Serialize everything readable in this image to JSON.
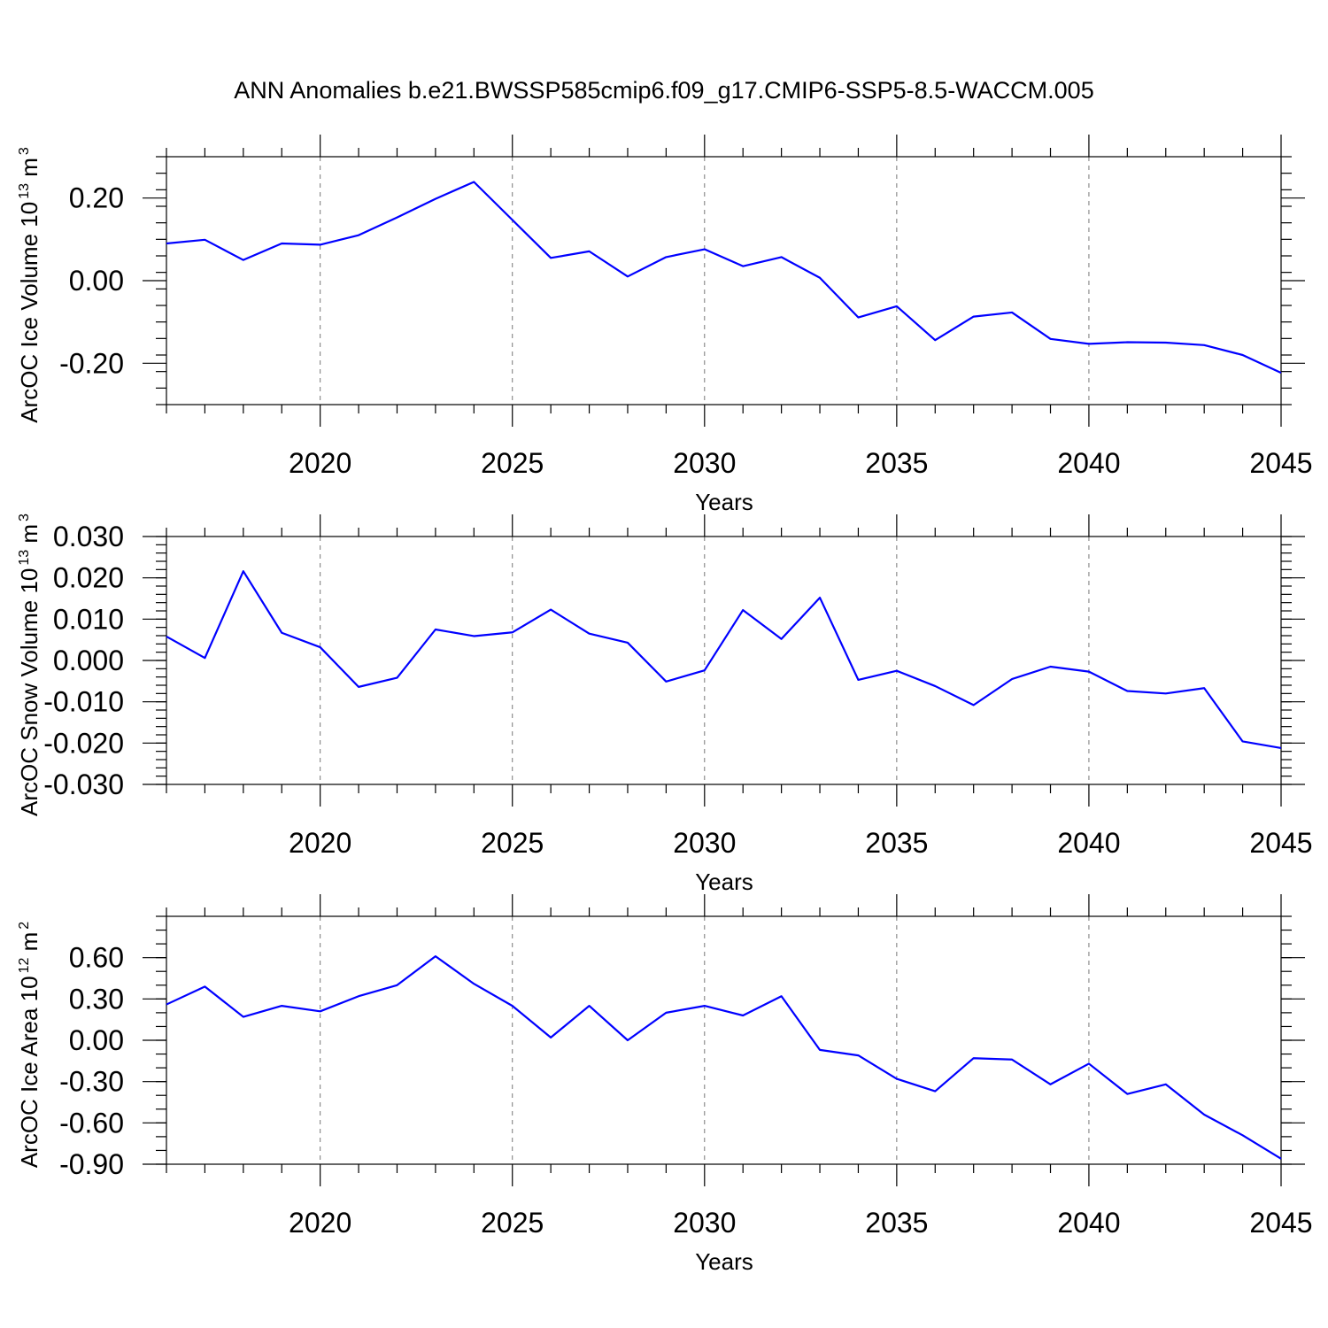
{
  "title": "ANN Anomalies b.e21.BWSSP585cmip6.f09_g17.CMIP6-SSP5-8.5-WACCM.005",
  "line_color": "#0000ff",
  "chart_data": [
    {
      "type": "line",
      "ylabel": "ArcOC Ice Volume 10",
      "ylabel_exp": "13",
      "ylabel_unit": " m",
      "ylabel_unit_exp": "3",
      "xlabel": "Years",
      "xlim": [
        2016,
        2045
      ],
      "ylim": [
        -0.3,
        0.3
      ],
      "x_ticks": [
        2020,
        2025,
        2030,
        2035,
        2040,
        2045
      ],
      "y_ticks": [
        0.2,
        0.0,
        -0.2
      ],
      "y_tick_labels": [
        "0.20",
        "0.00",
        "-0.20"
      ],
      "y_minor_step": 0.04,
      "grid": "vertical dashed at major x ticks",
      "series": [
        {
          "x": [
            2016,
            2017,
            2018,
            2019,
            2020,
            2021,
            2022,
            2023,
            2024,
            2025,
            2026,
            2027,
            2028,
            2029,
            2030,
            2031,
            2032,
            2033,
            2034,
            2035,
            2036,
            2037,
            2038,
            2039,
            2040,
            2041,
            2042,
            2043,
            2044,
            2045
          ],
          "values": [
            0.09,
            0.099,
            0.05,
            0.09,
            0.087,
            0.11,
            0.153,
            0.198,
            0.239,
            0.147,
            0.055,
            0.071,
            0.01,
            0.057,
            0.076,
            0.035,
            0.057,
            0.007,
            -0.089,
            -0.062,
            -0.144,
            -0.087,
            -0.077,
            -0.141,
            -0.153,
            -0.149,
            -0.15,
            -0.156,
            -0.18,
            -0.223
          ]
        }
      ]
    },
    {
      "type": "line",
      "ylabel": "ArcOC Snow Volume 10",
      "ylabel_exp": "13",
      "ylabel_unit": " m",
      "ylabel_unit_exp": "3",
      "xlabel": "Years",
      "xlim": [
        2016,
        2045
      ],
      "ylim": [
        -0.03,
        0.03
      ],
      "x_ticks": [
        2020,
        2025,
        2030,
        2035,
        2040,
        2045
      ],
      "y_ticks": [
        0.03,
        0.02,
        0.01,
        0.0,
        -0.01,
        -0.02,
        -0.03
      ],
      "y_tick_labels": [
        "0.030",
        "0.020",
        "0.010",
        "0.000",
        "-0.010",
        "-0.020",
        "-0.030"
      ],
      "y_minor_step": 0.002,
      "grid": "vertical dashed at major x ticks",
      "series": [
        {
          "x": [
            2016,
            2017,
            2018,
            2019,
            2020,
            2021,
            2022,
            2023,
            2024,
            2025,
            2026,
            2027,
            2028,
            2029,
            2030,
            2031,
            2032,
            2033,
            2034,
            2035,
            2036,
            2037,
            2038,
            2039,
            2040,
            2041,
            2042,
            2043,
            2044,
            2045
          ],
          "values": [
            0.0058,
            0.0006,
            0.0216,
            0.0067,
            0.0032,
            -0.0064,
            -0.0042,
            0.0075,
            0.0059,
            0.0068,
            0.0123,
            0.0065,
            0.0043,
            -0.0051,
            -0.0024,
            0.0122,
            0.0052,
            0.0152,
            -0.0047,
            -0.0025,
            -0.0062,
            -0.0108,
            -0.0045,
            -0.0015,
            -0.0027,
            -0.0074,
            -0.008,
            -0.0067,
            -0.0196,
            -0.0212
          ]
        }
      ]
    },
    {
      "type": "line",
      "ylabel": "ArcOC Ice Area 10",
      "ylabel_exp": "12",
      "ylabel_unit": " m",
      "ylabel_unit_exp": "2",
      "xlabel": "Years",
      "xlim": [
        2016,
        2045
      ],
      "ylim": [
        -0.9,
        0.9
      ],
      "x_ticks": [
        2020,
        2025,
        2030,
        2035,
        2040,
        2045
      ],
      "y_ticks": [
        0.6,
        0.3,
        0.0,
        -0.3,
        -0.6,
        -0.9
      ],
      "y_tick_labels": [
        "0.60",
        "0.30",
        "0.00",
        "-0.30",
        "-0.60",
        "-0.90"
      ],
      "y_minor_step": 0.1,
      "grid": "vertical dashed at major x ticks",
      "series": [
        {
          "x": [
            2016,
            2017,
            2018,
            2019,
            2020,
            2021,
            2022,
            2023,
            2024,
            2025,
            2026,
            2027,
            2028,
            2029,
            2030,
            2031,
            2032,
            2033,
            2034,
            2035,
            2036,
            2037,
            2038,
            2039,
            2040,
            2041,
            2042,
            2043,
            2044,
            2045
          ],
          "values": [
            0.26,
            0.39,
            0.17,
            0.25,
            0.21,
            0.32,
            0.4,
            0.61,
            0.41,
            0.25,
            0.02,
            0.25,
            0.0,
            0.2,
            0.25,
            0.18,
            0.32,
            -0.07,
            -0.11,
            -0.28,
            -0.37,
            -0.13,
            -0.14,
            -0.32,
            -0.17,
            -0.39,
            -0.32,
            -0.54,
            -0.69,
            -0.86
          ]
        }
      ]
    }
  ]
}
